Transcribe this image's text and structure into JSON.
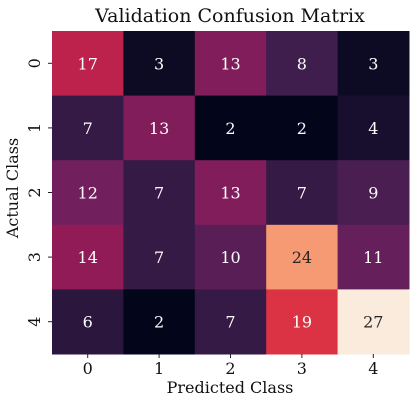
{
  "chart_data": {
    "type": "heatmap",
    "title": "Validation Confusion Matrix",
    "xlabel": "Predicted Class",
    "ylabel": "Actual Class",
    "x_categories": [
      "0",
      "1",
      "2",
      "3",
      "4"
    ],
    "y_categories": [
      "0",
      "1",
      "2",
      "3",
      "4"
    ],
    "values": [
      [
        17,
        3,
        13,
        8,
        3
      ],
      [
        7,
        13,
        2,
        2,
        4
      ],
      [
        12,
        7,
        13,
        7,
        9
      ],
      [
        14,
        7,
        10,
        24,
        11
      ],
      [
        6,
        2,
        7,
        19,
        27
      ]
    ],
    "value_range": [
      2,
      27
    ],
    "colorscale": "rocket",
    "grid": false,
    "legend": "none"
  }
}
